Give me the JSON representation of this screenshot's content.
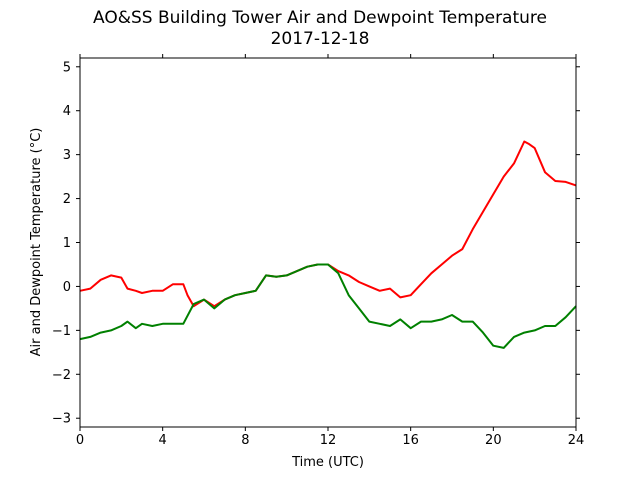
{
  "chart_data": {
    "type": "line",
    "title": "AO&SS Building Tower Air and Dewpoint Temperature",
    "subtitle": "2017-12-18",
    "xlabel": "Time (UTC)",
    "ylabel": "Air and Dewpoint Temperature (°C)",
    "xlim": [
      0,
      24
    ],
    "ylim": [
      -3.2,
      5.2
    ],
    "x_ticks": [
      0,
      4,
      8,
      12,
      16,
      20,
      24
    ],
    "y_ticks": [
      -3,
      -2,
      -1,
      0,
      1,
      2,
      3,
      4,
      5
    ],
    "grid": false,
    "legend": "none",
    "series": [
      {
        "color": "#ff0000",
        "x": [
          0,
          0.5,
          1,
          1.5,
          2,
          2.3,
          2.7,
          3,
          3.5,
          4,
          4.5,
          5,
          5.2,
          5.5,
          6,
          6.5,
          7,
          7.5,
          8,
          8.5,
          9,
          9.5,
          10,
          10.5,
          11,
          11.5,
          12,
          12.5,
          13,
          13.5,
          14,
          14.5,
          15,
          15.5,
          16,
          16.5,
          17,
          17.5,
          18,
          18.5,
          19,
          19.5,
          20,
          20.5,
          21,
          21.5,
          21.7,
          22,
          22.5,
          23,
          23.5,
          24
        ],
        "values": [
          -0.1,
          -0.05,
          0.15,
          0.25,
          0.2,
          -0.05,
          -0.1,
          -0.15,
          -0.1,
          -0.1,
          0.05,
          0.05,
          -0.2,
          -0.45,
          -0.3,
          -0.45,
          -0.3,
          -0.2,
          -0.15,
          -0.1,
          0.25,
          0.22,
          0.25,
          0.35,
          0.45,
          0.5,
          0.5,
          0.35,
          0.25,
          0.1,
          0,
          -0.1,
          -0.05,
          -0.25,
          -0.2,
          0.05,
          0.3,
          0.5,
          0.7,
          0.85,
          1.3,
          1.7,
          2.1,
          2.5,
          2.8,
          3.3,
          3.25,
          3.15,
          2.6,
          2.4,
          2.38,
          2.3
        ]
      },
      {
        "color": "#008000",
        "x": [
          0,
          0.5,
          1,
          1.5,
          2,
          2.3,
          2.7,
          3,
          3.5,
          4,
          4.5,
          5,
          5.5,
          6,
          6.5,
          7,
          7.5,
          8,
          8.5,
          9,
          9.5,
          10,
          10.5,
          11,
          11.5,
          12,
          12.5,
          13,
          13.5,
          14,
          14.5,
          15,
          15.5,
          16,
          16.5,
          17,
          17.5,
          18,
          18.5,
          19,
          19.5,
          20,
          20.5,
          21,
          21.5,
          22,
          22.5,
          23,
          23.5,
          24
        ],
        "values": [
          -1.2,
          -1.15,
          -1.05,
          -1.0,
          -0.9,
          -0.8,
          -0.95,
          -0.85,
          -0.9,
          -0.85,
          -0.85,
          -0.85,
          -0.4,
          -0.3,
          -0.5,
          -0.3,
          -0.2,
          -0.15,
          -0.1,
          0.25,
          0.22,
          0.25,
          0.35,
          0.45,
          0.5,
          0.5,
          0.3,
          -0.2,
          -0.5,
          -0.8,
          -0.85,
          -0.9,
          -0.75,
          -0.95,
          -0.8,
          -0.8,
          -0.75,
          -0.65,
          -0.8,
          -0.8,
          -1.05,
          -1.35,
          -1.4,
          -1.15,
          -1.05,
          -1.0,
          -0.9,
          -0.9,
          -0.7,
          -0.45
        ]
      }
    ]
  }
}
